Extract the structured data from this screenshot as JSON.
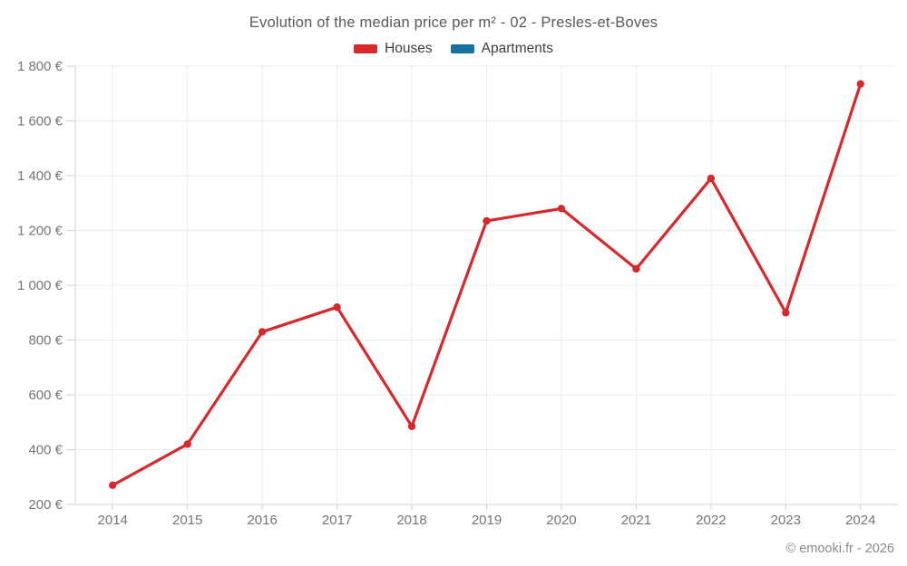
{
  "chart_data": {
    "type": "line",
    "title": "Evolution of the median price per m² - 02 - Presles-et-Boves",
    "categories": [
      "2014",
      "2015",
      "2016",
      "2017",
      "2018",
      "2019",
      "2020",
      "2021",
      "2022",
      "2023",
      "2024"
    ],
    "series": [
      {
        "name": "Houses",
        "color": "#d7282c",
        "values": [
          270,
          420,
          830,
          920,
          485,
          1235,
          1280,
          1060,
          1390,
          900,
          1735
        ]
      },
      {
        "name": "Apartments",
        "color": "#17739e",
        "values": []
      }
    ],
    "xlabel": "",
    "ylabel": "",
    "ylim": [
      200,
      1800
    ],
    "y_tick_step": 200,
    "y_tick_labels": [
      "200 €",
      "400 €",
      "600 €",
      "800 €",
      "1 000 €",
      "1 200 €",
      "1 400 €",
      "1 600 €",
      "1 800 €"
    ],
    "grid": true,
    "legend_position": "top"
  },
  "colors": {
    "title_text": "#595959",
    "legend_text": "#3f3f3f",
    "tick_label": "#757575",
    "grid": "#ededed",
    "axis": "#d2d2d2",
    "footer_text": "#8a8a8a"
  },
  "footer": {
    "credit": "© emooki.fr - 2026"
  }
}
